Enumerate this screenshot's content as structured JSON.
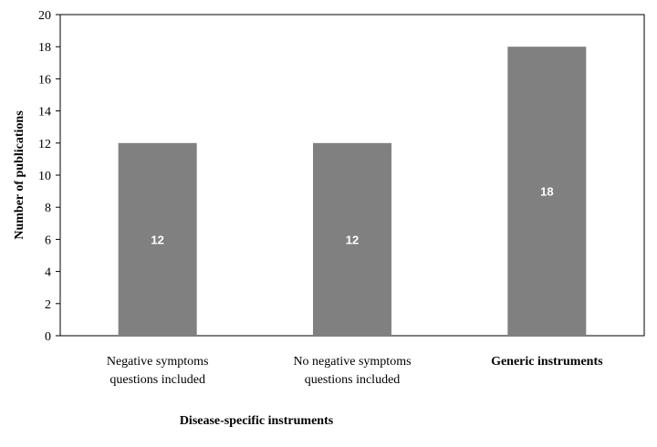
{
  "chart_data": {
    "type": "bar",
    "categories": [
      [
        "Negative symptoms",
        "questions included"
      ],
      [
        "No negative symptoms",
        "questions included"
      ],
      [
        "Generic instruments"
      ]
    ],
    "category_bold": [
      false,
      false,
      true
    ],
    "values": [
      12,
      12,
      18
    ],
    "data_labels": [
      "12",
      "12",
      "18"
    ],
    "ylabel": "Number  of  publications",
    "xlabel": "",
    "group_label": "Disease-specific instruments",
    "ylim": [
      0,
      20
    ],
    "yticks": [
      0,
      2,
      4,
      6,
      8,
      10,
      12,
      14,
      16,
      18,
      20
    ],
    "grid": false,
    "bar_color": "#808080"
  }
}
